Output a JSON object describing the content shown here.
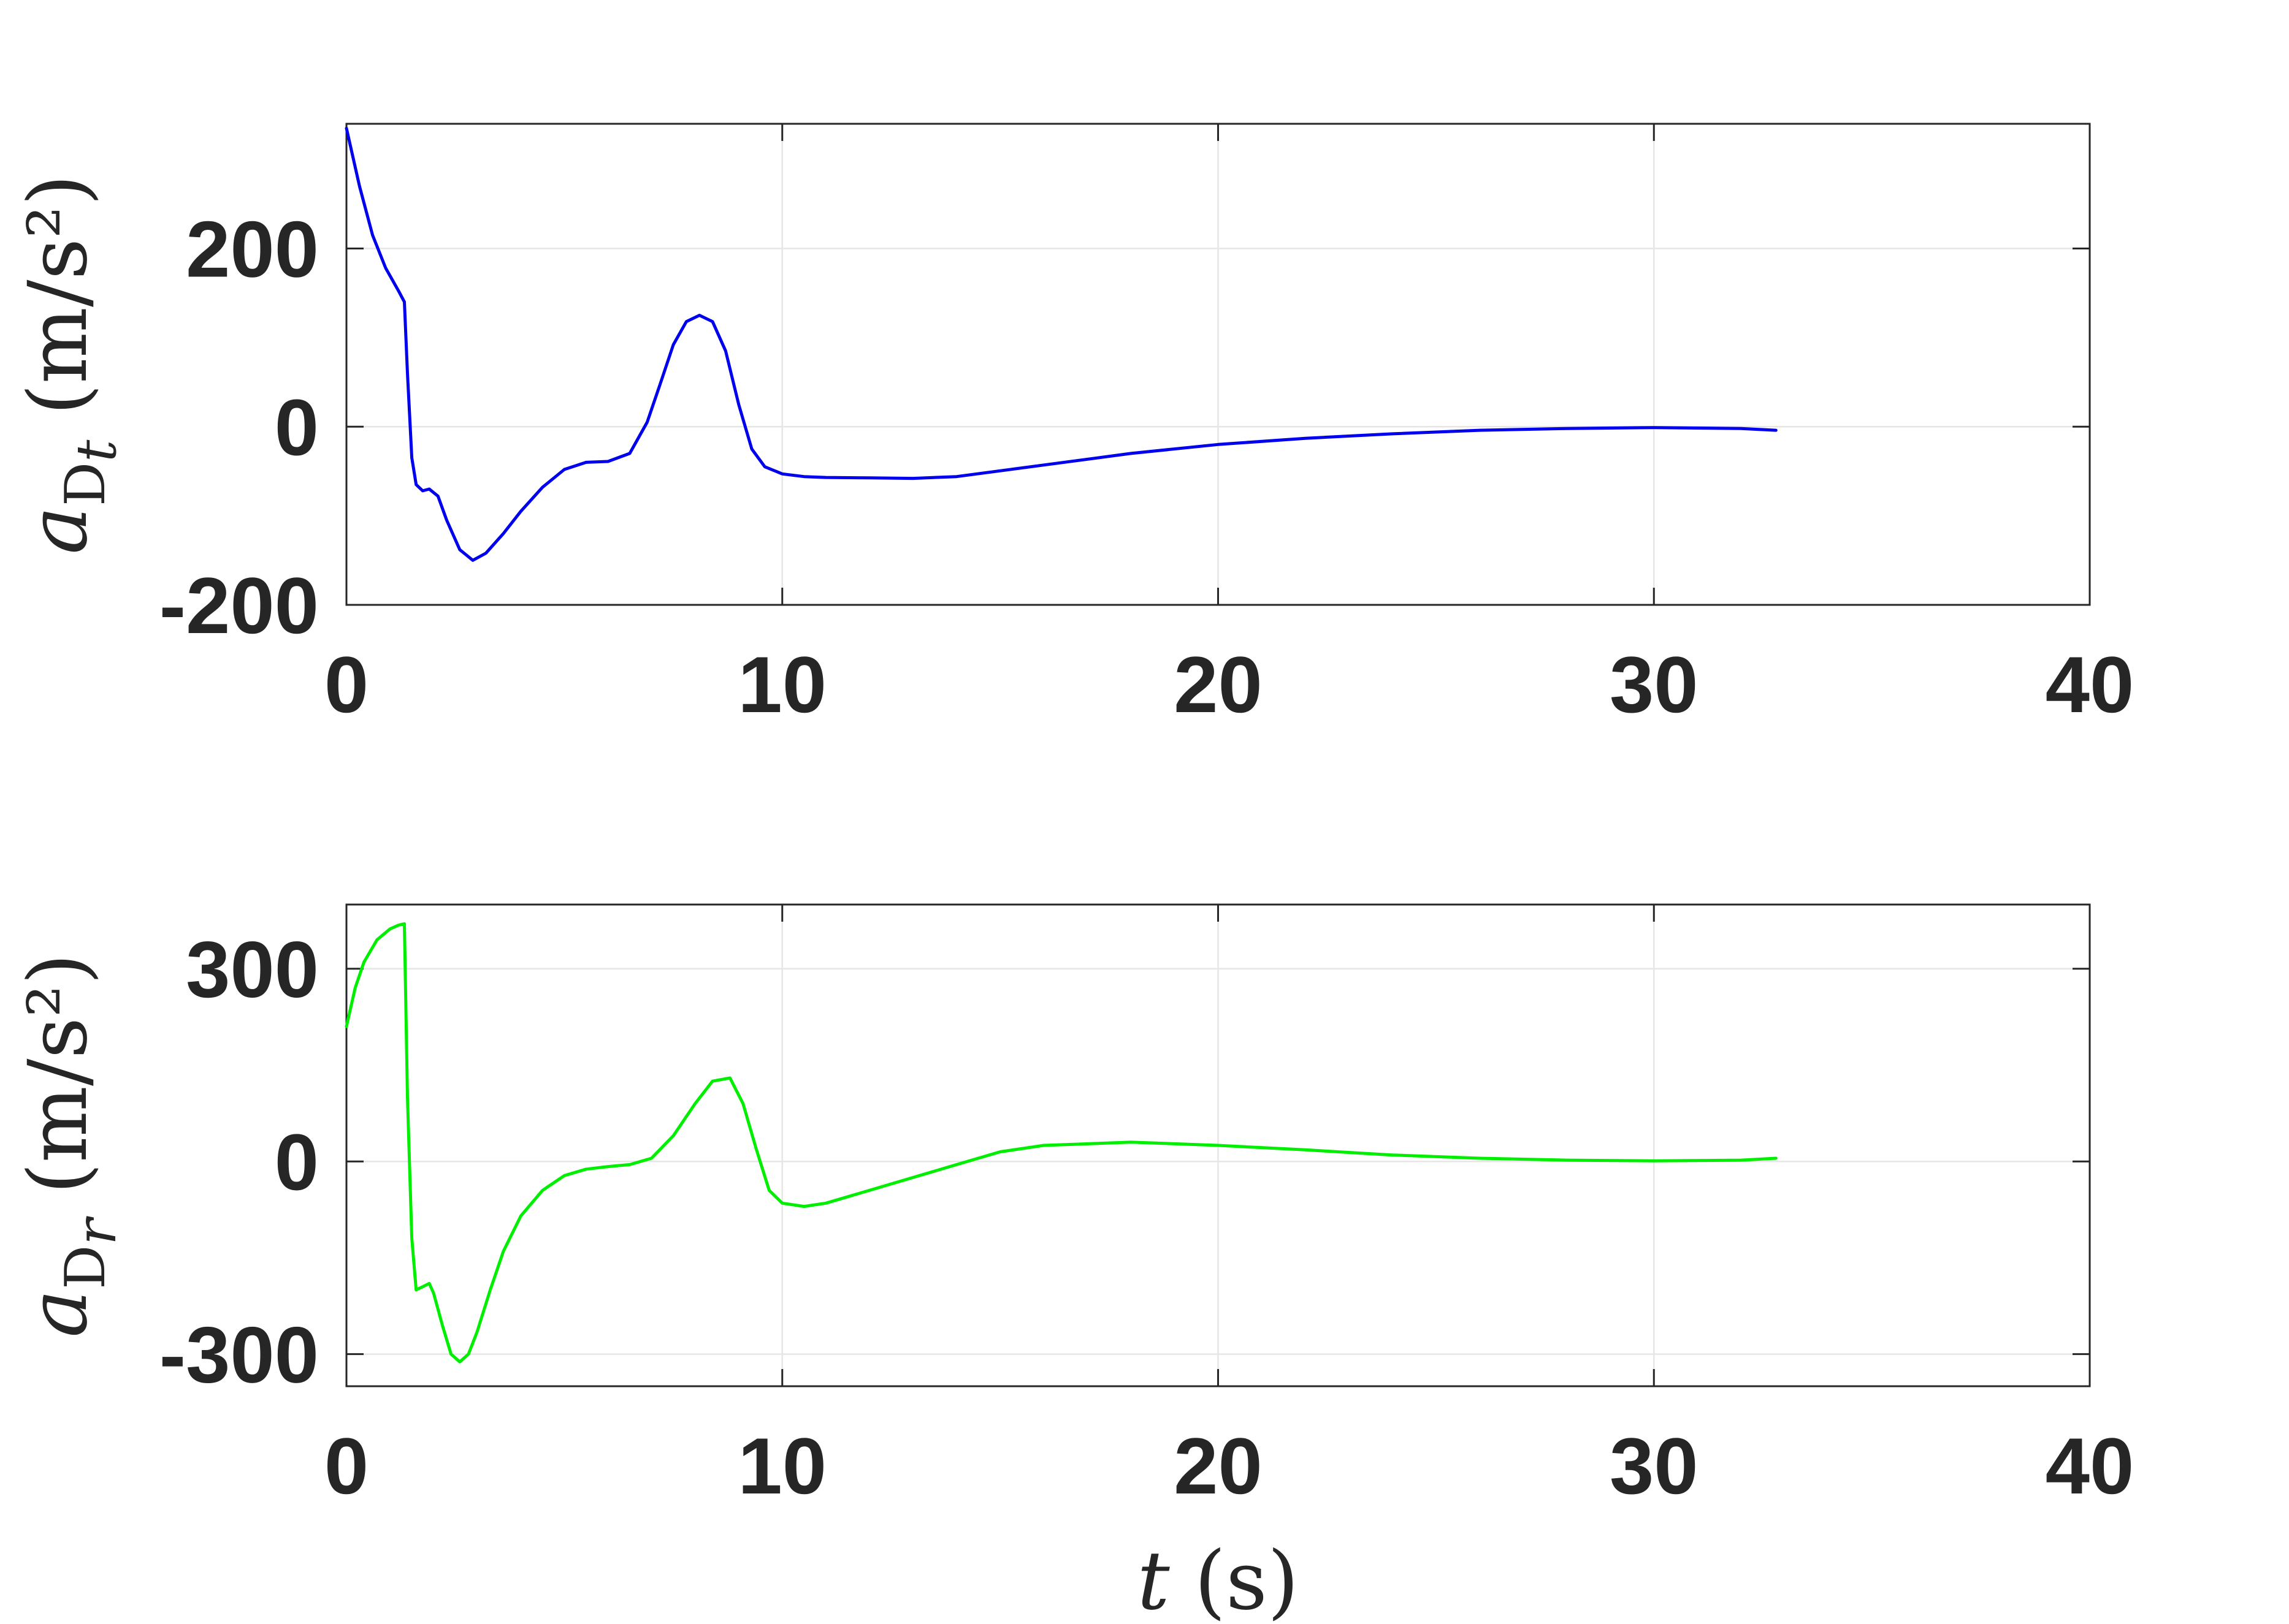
{
  "chart_data": [
    {
      "type": "line",
      "title": "",
      "xlabel": "",
      "ylabel": "a_{D_t} (m/s^2)",
      "ylabel_parts": {
        "symbol": "a",
        "subscript": "D",
        "subsub": "t",
        "unit": "(m/s²)"
      },
      "xlim": [
        0,
        40
      ],
      "ylim": [
        -200,
        340
      ],
      "xticks": [
        0,
        10,
        20,
        30,
        40
      ],
      "xtick_labels": [
        "0",
        "10",
        "20",
        "30",
        "40"
      ],
      "yticks": [
        -200,
        0,
        200
      ],
      "ytick_labels": [
        "-200",
        "0",
        "200"
      ],
      "grid": true,
      "color": "#0000ee",
      "series": [
        {
          "x": [
            0,
            0.3,
            0.6,
            0.9,
            1.2,
            1.33,
            1.4,
            1.5,
            1.6,
            1.75,
            1.9,
            2.1,
            2.3,
            2.6,
            2.9,
            3.2,
            3.6,
            4.0,
            4.5,
            5.0,
            5.5,
            6.0,
            6.5,
            6.9,
            7.2,
            7.5,
            7.8,
            8.1,
            8.4,
            8.7,
            9.0,
            9.3,
            9.6,
            10.0,
            10.5,
            11,
            12,
            13,
            14,
            16,
            18,
            20,
            22,
            24,
            26,
            28,
            30,
            32,
            32.8
          ],
          "y": [
            335,
            270,
            215,
            178,
            152,
            140,
            60,
            -35,
            -65,
            -72,
            -70,
            -78,
            -105,
            -138,
            -150,
            -142,
            -120,
            -95,
            -68,
            -48,
            -40,
            -39,
            -30,
            5,
            48,
            92,
            118,
            125,
            118,
            85,
            25,
            -25,
            -45,
            -53,
            -56,
            -57,
            -57.5,
            -58,
            -56,
            -43,
            -30,
            -20,
            -13,
            -8,
            -4,
            -2,
            -1,
            -2,
            -4
          ]
        }
      ]
    },
    {
      "type": "line",
      "title": "",
      "xlabel": "t (s)",
      "xlabel_parts": {
        "symbol": "t",
        "unit": "(s)"
      },
      "ylabel": "a_{D_r} (m/s^2)",
      "ylabel_parts": {
        "symbol": "a",
        "subscript": "D",
        "subsub": "r",
        "unit": "(m/s²)"
      },
      "xlim": [
        0,
        40
      ],
      "ylim": [
        -350,
        400
      ],
      "xticks": [
        0,
        10,
        20,
        30,
        40
      ],
      "xtick_labels": [
        "0",
        "10",
        "20",
        "30",
        "40"
      ],
      "yticks": [
        -300,
        0,
        300
      ],
      "ytick_labels": [
        "-300",
        "0",
        "300"
      ],
      "grid": true,
      "color": "#00ee00",
      "series": [
        {
          "x": [
            0,
            0.2,
            0.4,
            0.7,
            1.0,
            1.2,
            1.33,
            1.4,
            1.5,
            1.6,
            1.75,
            1.9,
            2.0,
            2.2,
            2.4,
            2.6,
            2.8,
            3.0,
            3.3,
            3.6,
            4.0,
            4.5,
            5.0,
            5.5,
            6.0,
            6.5,
            7.0,
            7.5,
            8.0,
            8.4,
            8.8,
            9.1,
            9.4,
            9.7,
            10.0,
            10.5,
            11,
            12,
            13,
            14,
            15,
            16,
            18,
            20,
            22,
            24,
            26,
            28,
            30,
            32,
            32.8
          ],
          "y": [
            210,
            270,
            310,
            345,
            362,
            368,
            370,
            100,
            -120,
            -200,
            -195,
            -190,
            -205,
            -255,
            -300,
            -312,
            -300,
            -265,
            -200,
            -140,
            -85,
            -45,
            -22,
            -12,
            -8,
            -5,
            5,
            40,
            90,
            125,
            130,
            90,
            20,
            -45,
            -65,
            -70,
            -65,
            -45,
            -25,
            -5,
            15,
            25,
            30,
            25,
            18,
            10,
            5,
            2,
            1,
            2,
            5
          ]
        }
      ]
    }
  ]
}
